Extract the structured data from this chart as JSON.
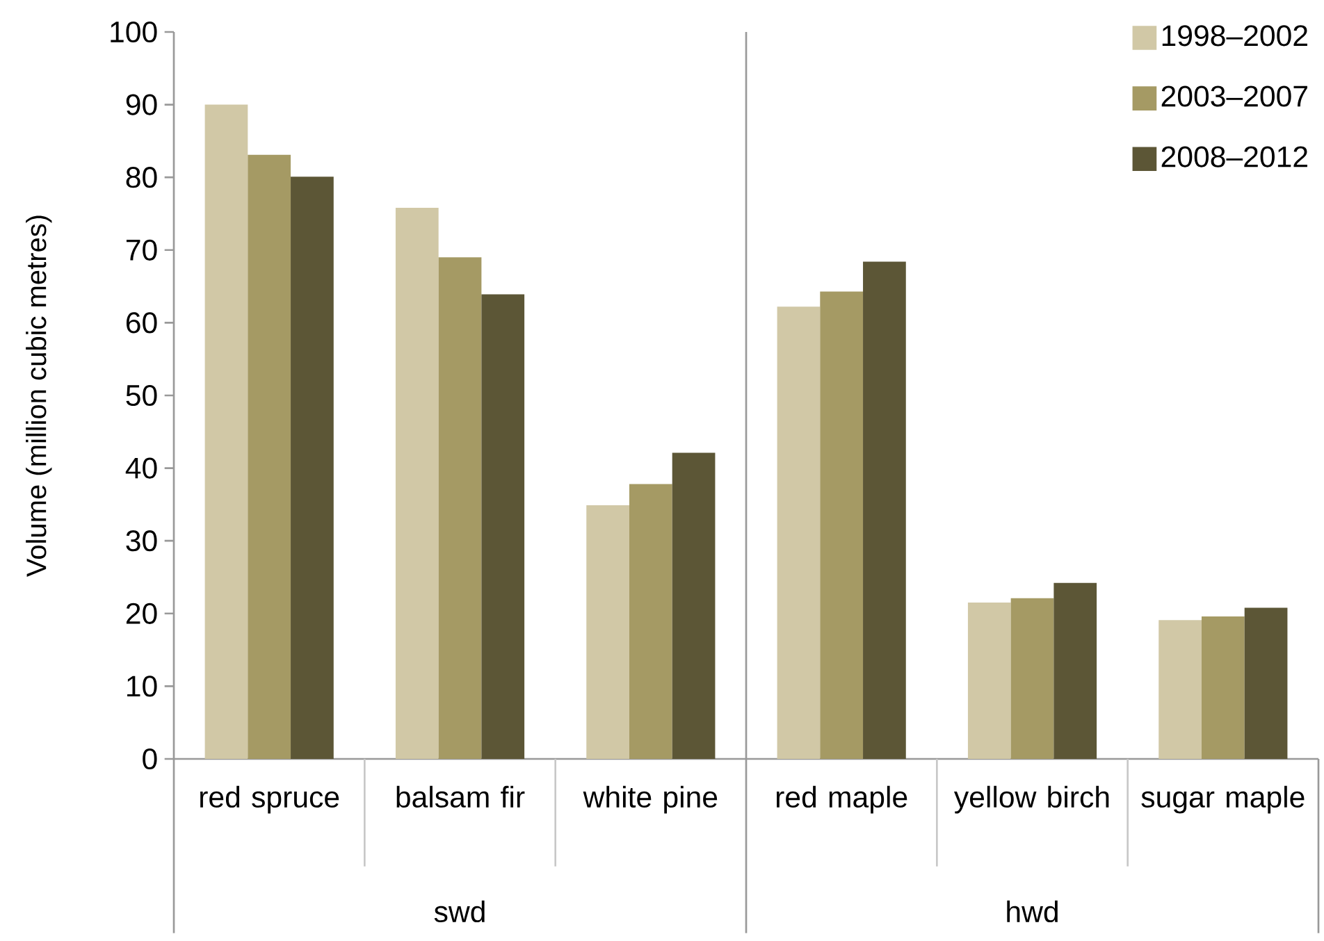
{
  "chart_data": {
    "type": "bar",
    "ylabel": "Volume (million cubic metres)",
    "categories": [
      "red spruce",
      "balsam fir",
      "white pine",
      "red maple",
      "yellow birch",
      "sugar maple"
    ],
    "series": [
      {
        "name": "1998–2002",
        "color": "#d1c8a6",
        "values": [
          90,
          75.8,
          34.9,
          62.2,
          21.5,
          19.1
        ]
      },
      {
        "name": "2003–2007",
        "color": "#a59a64",
        "values": [
          83.1,
          69.0,
          37.8,
          64.3,
          22.1,
          19.6
        ]
      },
      {
        "name": "2008–2012",
        "color": "#5c5636",
        "values": [
          80.1,
          63.9,
          42.1,
          68.4,
          24.2,
          20.8
        ]
      }
    ],
    "ylim": [
      0,
      100
    ],
    "yticks": [
      0,
      10,
      20,
      30,
      40,
      50,
      60,
      70,
      80,
      90,
      100
    ],
    "annotations": [
      "swd",
      "hwd"
    ],
    "legend": "top right",
    "grid": false
  }
}
